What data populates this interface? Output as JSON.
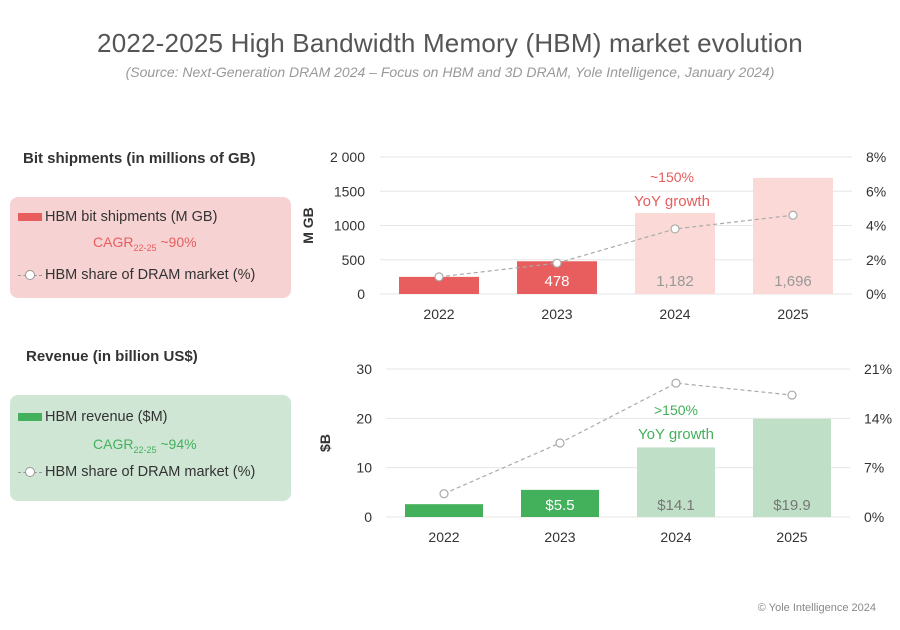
{
  "title": "2022-2025 High Bandwidth Memory (HBM) market evolution",
  "subtitle": "(Source: Next-Generation DRAM 2024 – Focus on HBM and 3D DRAM, Yole Intelligence, January 2024)",
  "copyright": "© Yole Intelligence 2024",
  "colors": {
    "red_strong": "#e85d5d",
    "red_light": "#fbd9d7",
    "green_strong": "#43b05c",
    "green_light": "#bfdfc6",
    "share_line": "#aaaaaa"
  },
  "shipments": {
    "heading": "Bit shipments (in millions of GB)",
    "legend": {
      "bars_label": "HBM bit shipments (M GB)",
      "cagr_prefix": "CAGR",
      "cagr_sub": "22-25",
      "cagr_value": " ~90%",
      "share_label": "HBM share of DRAM market (%)"
    },
    "annotation_line1": "~150%",
    "annotation_line2": "YoY growth"
  },
  "revenue": {
    "heading": "Revenue (in billion US$)",
    "legend": {
      "bars_label": "HBM revenue ($M)",
      "cagr_prefix": "CAGR",
      "cagr_sub": "22-25",
      "cagr_value": " ~94%",
      "share_label": "HBM share of DRAM market (%)"
    },
    "annotation_line1": ">150%",
    "annotation_line2": "YoY growth"
  },
  "chart_data": [
    {
      "type": "bar",
      "title": "Bit shipments (in millions of GB)",
      "categories": [
        "2022",
        "2023",
        "2024",
        "2025"
      ],
      "ylabel": "M GB",
      "ylim": [
        0,
        2000
      ],
      "yticks": [
        "0",
        "500",
        "1000",
        "1500",
        "2 000"
      ],
      "ytick_values": [
        0,
        500,
        1000,
        1500,
        2000
      ],
      "y2lim": [
        0,
        8
      ],
      "y2ticks": [
        "0%",
        "2%",
        "4%",
        "6%",
        "8%"
      ],
      "series": [
        {
          "name": "HBM bit shipments (M GB)",
          "values": [
            250,
            478,
            1182,
            1696
          ],
          "labels": [
            "",
            "478",
            "1,182",
            "1,696"
          ]
        },
        {
          "name": "HBM share of DRAM market (%)",
          "axis": "right",
          "values": [
            1.0,
            1.8,
            3.8,
            4.6
          ]
        }
      ]
    },
    {
      "type": "bar",
      "title": "Revenue (in billion US$)",
      "categories": [
        "2022",
        "2023",
        "2024",
        "2025"
      ],
      "ylabel": "$B",
      "ylim": [
        0,
        30
      ],
      "yticks": [
        "0",
        "10",
        "20",
        "30"
      ],
      "ytick_values": [
        0,
        10,
        20,
        30
      ],
      "y2lim": [
        0,
        21
      ],
      "y2ticks": [
        "0%",
        "7%",
        "14%",
        "21%"
      ],
      "series": [
        {
          "name": "HBM revenue ($M)",
          "values": [
            2.6,
            5.5,
            14.1,
            19.9
          ],
          "labels": [
            "",
            "$5.5",
            "$14.1",
            "$19.9"
          ]
        },
        {
          "name": "HBM share of DRAM market (%)",
          "axis": "right",
          "values": [
            3.3,
            10.5,
            19.0,
            17.3
          ]
        }
      ]
    }
  ]
}
